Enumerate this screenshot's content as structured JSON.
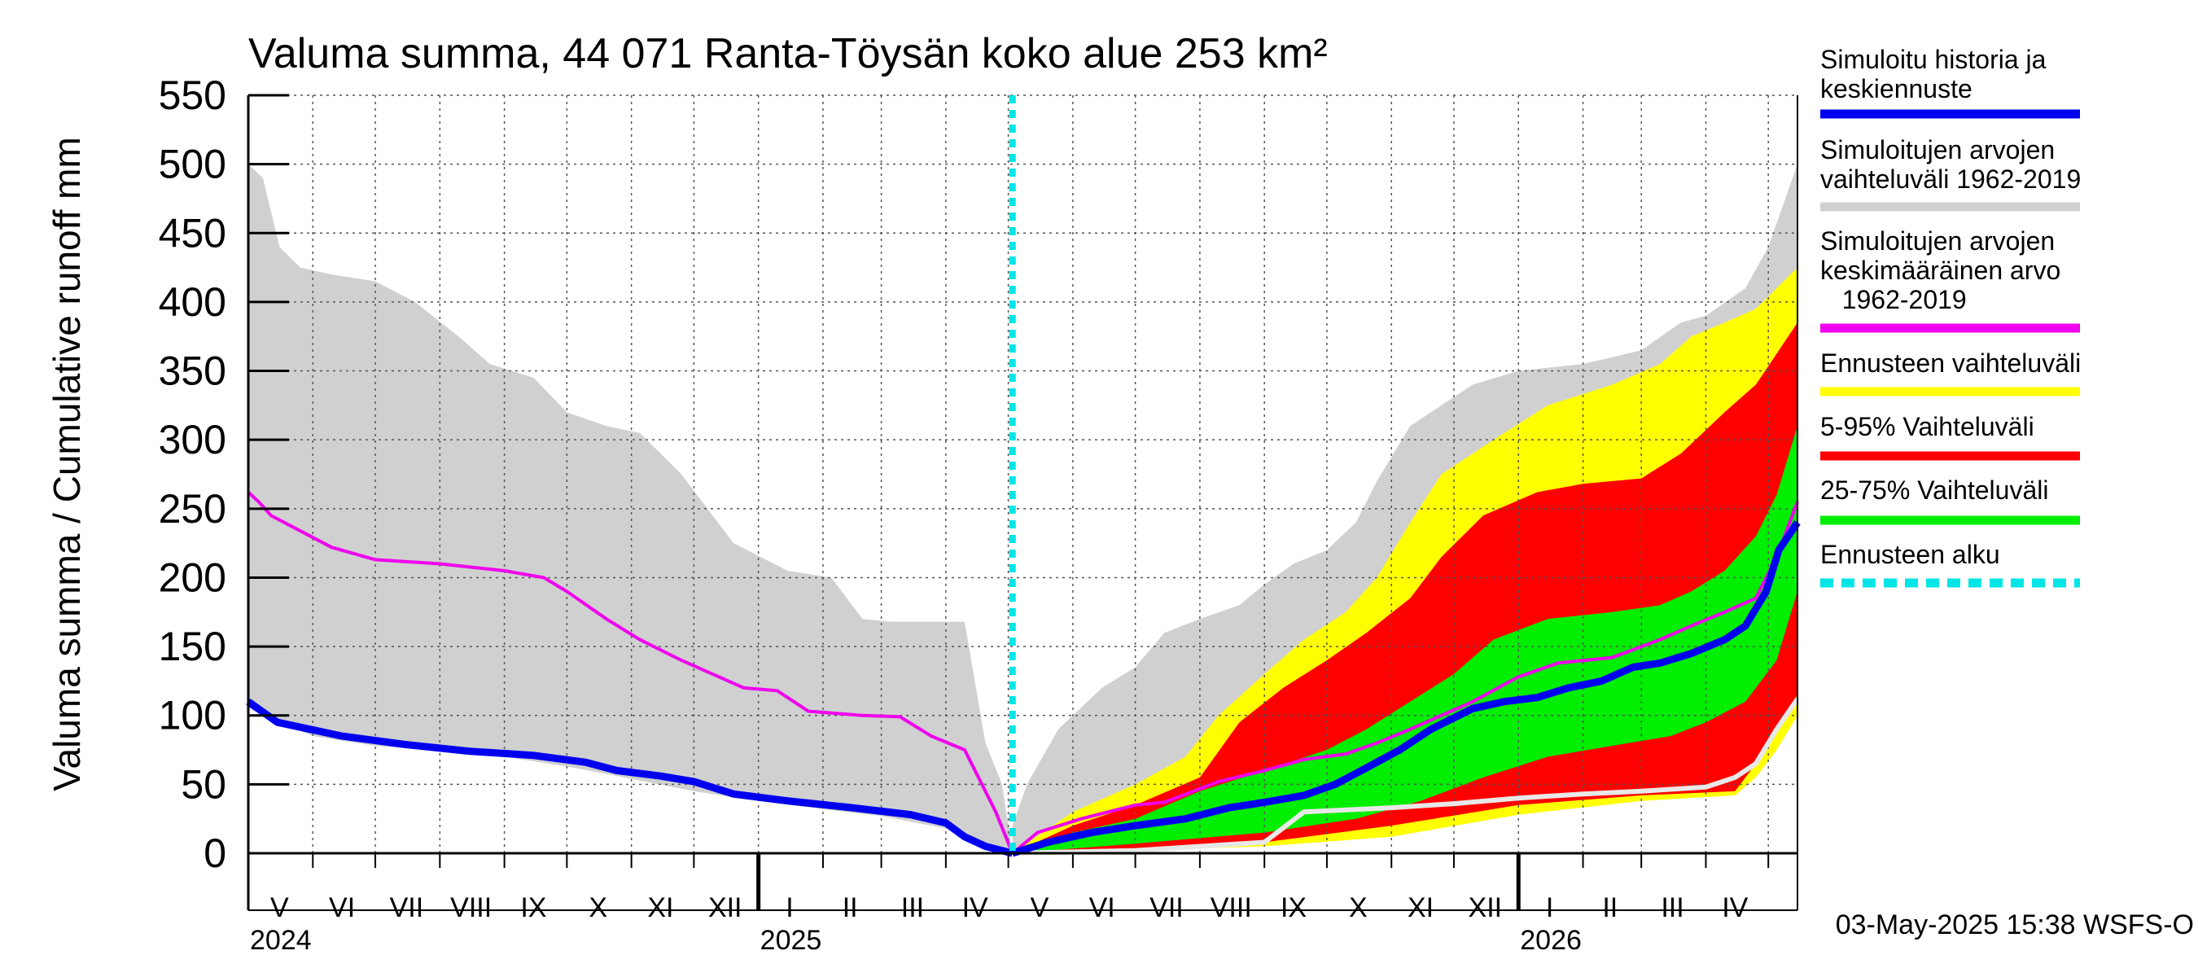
{
  "chart_data": {
    "type": "area",
    "title": "Valuma summa, 44 071 Ranta-Töysän koko alue 253 km²",
    "ylabel": "Valuma summa / Cumulative runoff    mm",
    "ylim": [
      0,
      550
    ],
    "yticks": [
      0,
      50,
      100,
      150,
      200,
      250,
      300,
      350,
      400,
      450,
      500,
      550
    ],
    "grid": true,
    "xlim": [
      "2024-05-01",
      "2026-05-15"
    ],
    "forecast_start": "2025-05-03",
    "month_labels": [
      {
        "label": "V",
        "date": "2024-05-16"
      },
      {
        "label": "VI",
        "date": "2024-06-15"
      },
      {
        "label": "VII",
        "date": "2024-07-16"
      },
      {
        "label": "VIII",
        "date": "2024-08-16"
      },
      {
        "label": "IX",
        "date": "2024-09-15"
      },
      {
        "label": "X",
        "date": "2024-10-16"
      },
      {
        "label": "XI",
        "date": "2024-11-15"
      },
      {
        "label": "XII",
        "date": "2024-12-16"
      },
      {
        "label": "I",
        "date": "2025-01-16"
      },
      {
        "label": "II",
        "date": "2025-02-14"
      },
      {
        "label": "III",
        "date": "2025-03-16"
      },
      {
        "label": "IV",
        "date": "2025-04-15"
      },
      {
        "label": "V",
        "date": "2025-05-16"
      },
      {
        "label": "VI",
        "date": "2025-06-15"
      },
      {
        "label": "VII",
        "date": "2025-07-16"
      },
      {
        "label": "VIII",
        "date": "2025-08-16"
      },
      {
        "label": "IX",
        "date": "2025-09-15"
      },
      {
        "label": "X",
        "date": "2025-10-16"
      },
      {
        "label": "XI",
        "date": "2025-11-15"
      },
      {
        "label": "XII",
        "date": "2025-12-16"
      },
      {
        "label": "I",
        "date": "2026-01-16"
      },
      {
        "label": "II",
        "date": "2026-02-14"
      },
      {
        "label": "III",
        "date": "2026-03-16"
      },
      {
        "label": "IV",
        "date": "2026-04-15"
      }
    ],
    "year_labels": [
      {
        "label": "2024",
        "date": "2024-05-01"
      },
      {
        "label": "2025",
        "date": "2025-01-01"
      },
      {
        "label": "2026",
        "date": "2026-01-01"
      }
    ],
    "legend": [
      {
        "label": "Simuloitu historia ja\nkeskiennuste",
        "color": "#0000ee",
        "style": "solid"
      },
      {
        "label": "Simuloitujen arvojen\nvaihteluväli 1962-2019",
        "color": "#d0d0d0",
        "style": "solid"
      },
      {
        "label": "Simuloitujen arvojen\nkeskimääräinen arvo\n   1962-2019",
        "color": "#ee00ee",
        "style": "solid"
      },
      {
        "label": "Ennusteen vaihteluväli",
        "color": "#ffff00",
        "style": "solid"
      },
      {
        "label": "5-95% Vaihteluväli",
        "color": "#ff0000",
        "style": "solid"
      },
      {
        "label": "25-75% Vaihteluväli",
        "color": "#00ee00",
        "style": "solid"
      },
      {
        "label": "Ennusteen alku",
        "color": "#00e5e5",
        "style": "dashed"
      }
    ],
    "footer": "03-May-2025 15:38 WSFS-O",
    "series": {
      "hist_range_upper": {
        "x": [
          "2024-05-01",
          "2024-05-08",
          "2024-05-16",
          "2024-05-26",
          "2024-06-10",
          "2024-07-01",
          "2024-07-20",
          "2024-08-10",
          "2024-08-25",
          "2024-09-15",
          "2024-10-01",
          "2024-10-20",
          "2024-11-05",
          "2024-11-25",
          "2024-12-20",
          "2025-01-15",
          "2025-02-05",
          "2025-02-20",
          "2025-03-05",
          "2025-03-25",
          "2025-04-10",
          "2025-04-20",
          "2025-04-28",
          "2025-05-03"
        ],
        "y": [
          500,
          490,
          440,
          425,
          420,
          415,
          400,
          375,
          355,
          345,
          320,
          310,
          305,
          275,
          225,
          205,
          200,
          170,
          168,
          168,
          168,
          80,
          50,
          0
        ]
      },
      "hist_range_lower": {
        "x": [
          "2024-05-01",
          "2024-06-01",
          "2024-07-01",
          "2024-08-01",
          "2024-09-01",
          "2024-10-01",
          "2024-11-01",
          "2024-12-01",
          "2025-01-01",
          "2025-02-01",
          "2025-03-01",
          "2025-04-01",
          "2025-04-20",
          "2025-05-03"
        ],
        "y": [
          105,
          85,
          78,
          74,
          70,
          63,
          54,
          45,
          38,
          32,
          27,
          18,
          6,
          0
        ]
      },
      "hist_mean": {
        "x": [
          "2024-05-01",
          "2024-05-06",
          "2024-05-12",
          "2024-06-10",
          "2024-07-01",
          "2024-08-01",
          "2024-09-01",
          "2024-09-20",
          "2024-10-01",
          "2024-10-20",
          "2024-11-05",
          "2024-11-25",
          "2024-12-10",
          "2024-12-25",
          "2025-01-10",
          "2025-01-25",
          "2025-02-20",
          "2025-03-10",
          "2025-03-25",
          "2025-04-10",
          "2025-04-25",
          "2025-05-03"
        ],
        "y": [
          262,
          255,
          245,
          222,
          213,
          210,
          205,
          200,
          190,
          170,
          155,
          140,
          130,
          120,
          118,
          103,
          100,
          99,
          85,
          75,
          30,
          0
        ]
      },
      "simulated_history": {
        "x": [
          "2024-05-01",
          "2024-05-15",
          "2024-06-15",
          "2024-07-15",
          "2024-08-15",
          "2024-09-15",
          "2024-10-10",
          "2024-10-25",
          "2024-11-15",
          "2024-12-01",
          "2024-12-20",
          "2025-01-15",
          "2025-02-15",
          "2025-03-15",
          "2025-04-01",
          "2025-04-10",
          "2025-04-20",
          "2025-05-03"
        ],
        "y": [
          110,
          95,
          85,
          79,
          74,
          71,
          66,
          60,
          56,
          52,
          43,
          38,
          33,
          28,
          22,
          12,
          5,
          0
        ]
      },
      "forecast_hist_upper": {
        "x": [
          "2025-05-03",
          "2025-05-10",
          "2025-05-25",
          "2025-06-15",
          "2025-07-01",
          "2025-07-15",
          "2025-08-01",
          "2025-08-20",
          "2025-09-01",
          "2025-09-15",
          "2025-10-01",
          "2025-10-15",
          "2025-10-25",
          "2025-11-10",
          "2025-11-25",
          "2025-12-10",
          "2026-01-01",
          "2026-02-01",
          "2026-03-01",
          "2026-03-20",
          "2026-04-01",
          "2026-04-20",
          "2026-05-01",
          "2026-05-15"
        ],
        "y": [
          20,
          50,
          90,
          120,
          135,
          160,
          170,
          180,
          195,
          210,
          220,
          240,
          270,
          310,
          325,
          340,
          350,
          355,
          365,
          385,
          390,
          410,
          440,
          500
        ]
      },
      "forecast_hist_lower": {
        "x": [
          "2025-05-03",
          "2025-07-01",
          "2025-09-01",
          "2025-11-01",
          "2026-01-01",
          "2026-03-01",
          "2026-04-15",
          "2026-04-25",
          "2026-05-05",
          "2026-05-15"
        ],
        "y": [
          0,
          2,
          6,
          15,
          30,
          40,
          45,
          60,
          80,
          110
        ]
      },
      "forecast_range_upper": {
        "x": [
          "2025-05-03",
          "2025-06-01",
          "2025-07-01",
          "2025-07-25",
          "2025-08-10",
          "2025-09-01",
          "2025-09-20",
          "2025-10-10",
          "2025-10-25",
          "2025-11-10",
          "2025-11-25",
          "2025-12-20",
          "2026-01-15",
          "2026-02-15",
          "2026-03-10",
          "2026-03-25",
          "2026-04-10",
          "2026-04-25",
          "2026-05-15"
        ],
        "y": [
          0,
          30,
          50,
          70,
          100,
          130,
          155,
          175,
          200,
          240,
          275,
          300,
          325,
          340,
          355,
          375,
          385,
          395,
          425
        ]
      },
      "forecast_range_lower": {
        "x": [
          "2025-05-03",
          "2025-07-01",
          "2025-09-01",
          "2025-11-01",
          "2026-01-01",
          "2026-03-01",
          "2026-04-15",
          "2026-04-25",
          "2026-05-05",
          "2026-05-15"
        ],
        "y": [
          0,
          2,
          5,
          12,
          28,
          38,
          42,
          55,
          75,
          100
        ]
      },
      "p5_95_upper": {
        "x": [
          "2025-05-03",
          "2025-06-01",
          "2025-07-01",
          "2025-08-01",
          "2025-08-20",
          "2025-09-10",
          "2025-10-01",
          "2025-10-20",
          "2025-11-10",
          "2025-11-25",
          "2025-12-15",
          "2026-01-10",
          "2026-02-01",
          "2026-03-01",
          "2026-03-20",
          "2026-04-10",
          "2026-04-25",
          "2026-05-15"
        ],
        "y": [
          0,
          20,
          35,
          55,
          95,
          120,
          140,
          160,
          185,
          215,
          245,
          262,
          268,
          272,
          290,
          320,
          340,
          385
        ]
      },
      "p5_95_lower": {
        "x": [
          "2025-05-03",
          "2025-07-01",
          "2025-09-01",
          "2025-11-01",
          "2026-01-01",
          "2026-03-01",
          "2026-04-15",
          "2026-04-25",
          "2026-05-05",
          "2026-05-15"
        ],
        "y": [
          0,
          3,
          8,
          20,
          35,
          42,
          45,
          65,
          90,
          115
        ]
      },
      "p25_75_upper": {
        "x": [
          "2025-05-03",
          "2025-06-01",
          "2025-07-01",
          "2025-08-01",
          "2025-09-01",
          "2025-10-01",
          "2025-10-20",
          "2025-11-10",
          "2025-12-01",
          "2025-12-20",
          "2026-01-15",
          "2026-02-15",
          "2026-03-10",
          "2026-03-25",
          "2026-04-10",
          "2026-04-25",
          "2026-05-05",
          "2026-05-15"
        ],
        "y": [
          0,
          15,
          25,
          45,
          60,
          75,
          90,
          110,
          130,
          155,
          170,
          175,
          180,
          190,
          205,
          230,
          260,
          310
        ]
      },
      "p25_75_lower": {
        "x": [
          "2025-05-03",
          "2025-07-01",
          "2025-09-01",
          "2025-10-15",
          "2025-11-15",
          "2025-12-15",
          "2026-01-15",
          "2026-02-15",
          "2026-03-15",
          "2026-04-01",
          "2026-04-20",
          "2026-05-05",
          "2026-05-15"
        ],
        "y": [
          0,
          7,
          15,
          25,
          38,
          55,
          70,
          78,
          85,
          95,
          110,
          140,
          190
        ]
      },
      "median_forecast": {
        "x": [
          "2025-05-03",
          "2025-05-20",
          "2025-06-10",
          "2025-07-01",
          "2025-07-25",
          "2025-08-15",
          "2025-09-01",
          "2025-09-20",
          "2025-10-05",
          "2025-10-20",
          "2025-11-05",
          "2025-11-20",
          "2025-12-10",
          "2025-12-25",
          "2026-01-10",
          "2026-01-25",
          "2026-02-10",
          "2026-02-25",
          "2026-03-10",
          "2026-03-25",
          "2026-04-10",
          "2026-04-20",
          "2026-04-30",
          "2026-05-06",
          "2026-05-15"
        ],
        "y": [
          0,
          8,
          15,
          20,
          25,
          33,
          37,
          42,
          50,
          62,
          75,
          90,
          105,
          110,
          113,
          120,
          125,
          135,
          138,
          145,
          155,
          165,
          190,
          220,
          240
        ]
      },
      "mean_forecast": {
        "x": [
          "2025-05-03",
          "2025-05-15",
          "2025-06-05",
          "2025-07-01",
          "2025-07-15",
          "2025-08-10",
          "2025-09-01",
          "2025-09-20",
          "2025-10-10",
          "2025-10-25",
          "2025-11-10",
          "2025-11-25",
          "2025-12-10",
          "2026-01-01",
          "2026-01-20",
          "2026-02-15",
          "2026-03-10",
          "2026-03-25",
          "2026-04-10",
          "2026-04-25",
          "2026-05-05",
          "2026-05-15"
        ],
        "y": [
          0,
          15,
          25,
          35,
          37,
          52,
          60,
          68,
          72,
          80,
          90,
          100,
          110,
          128,
          138,
          142,
          155,
          165,
          175,
          185,
          215,
          255
        ]
      },
      "driest_forecast": {
        "x": [
          "2025-05-03",
          "2025-07-01",
          "2025-09-01",
          "2025-09-20",
          "2025-11-01",
          "2025-12-01",
          "2026-01-01",
          "2026-02-01",
          "2026-03-01",
          "2026-04-01",
          "2026-04-15",
          "2026-04-25",
          "2026-05-05",
          "2026-05-15"
        ],
        "y": [
          0,
          2,
          8,
          30,
          33,
          36,
          40,
          43,
          45,
          48,
          55,
          65,
          90,
          112
        ]
      }
    }
  }
}
